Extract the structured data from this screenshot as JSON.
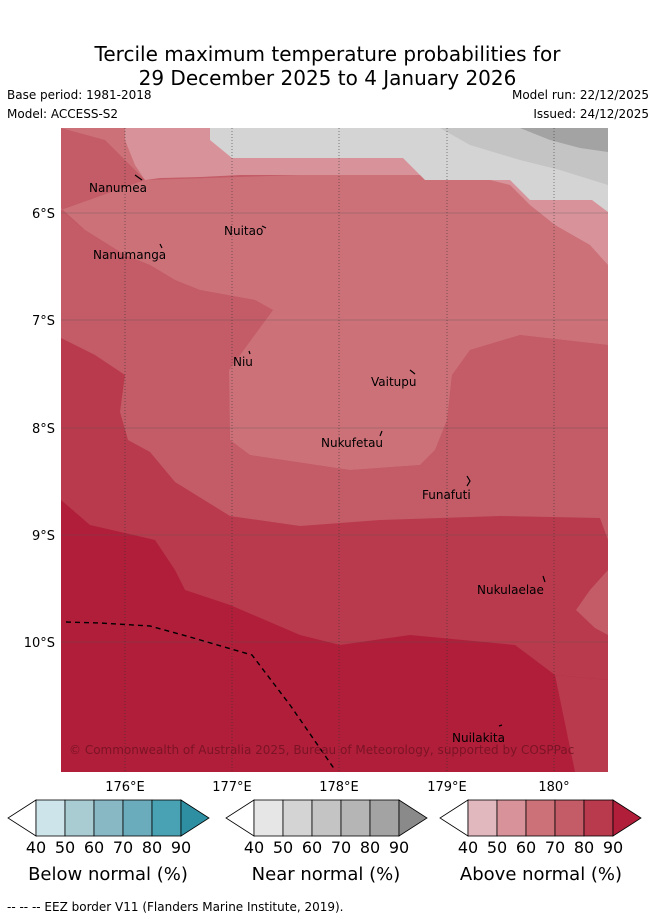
{
  "title_line1": "Tercile maximum temperature probabilities for",
  "title_line2": "29 December 2025 to 4 January 2026",
  "base_period": "Base period: 1981-2018",
  "model": "Model: ACCESS-S2",
  "model_run": "Model run: 22/12/2025",
  "issued": "Issued: 24/12/2025",
  "lat_labels": [
    "6°S",
    "7°S",
    "8°S",
    "9°S",
    "10°S"
  ],
  "lon_labels": [
    "176°E",
    "177°E",
    "178°E",
    "179°E",
    "180°"
  ],
  "places": [
    "Nanumea",
    "Nuitao",
    "Nanumanga",
    "Niu",
    "Vaitupu",
    "Nukufetau",
    "Funafuti",
    "Nukulaelae",
    "Nuilakita"
  ],
  "copyright": "© Commonwealth of Australia 2025, Bureau of Meteorology, supported by COSPPac",
  "colorbars": [
    {
      "title": "Below normal (%)",
      "ticks": [
        "40",
        "50",
        "60",
        "70",
        "80",
        "90"
      ],
      "colors": [
        "#ffffff",
        "#cde4ea",
        "#a8ccd2",
        "#88b8c4",
        "#6aacbc",
        "#49a2b3",
        "#2e8fa3"
      ]
    },
    {
      "title": "Near normal (%)",
      "ticks": [
        "40",
        "50",
        "60",
        "70",
        "80",
        "90"
      ],
      "colors": [
        "#ffffff",
        "#e6e6e6",
        "#d4d4d4",
        "#c4c4c4",
        "#b5b5b5",
        "#a3a3a3",
        "#8a8a8a"
      ]
    },
    {
      "title": "Above normal (%)",
      "ticks": [
        "40",
        "50",
        "60",
        "70",
        "80",
        "90"
      ],
      "colors": [
        "#ffffff",
        "#e2b8bf",
        "#d8939a",
        "#cd7179",
        "#c35c67",
        "#b93a4c",
        "#b01e3a"
      ]
    }
  ],
  "footer": "--  --  -- EEZ border V11 (Flanders Marine Institute, 2019)."
}
